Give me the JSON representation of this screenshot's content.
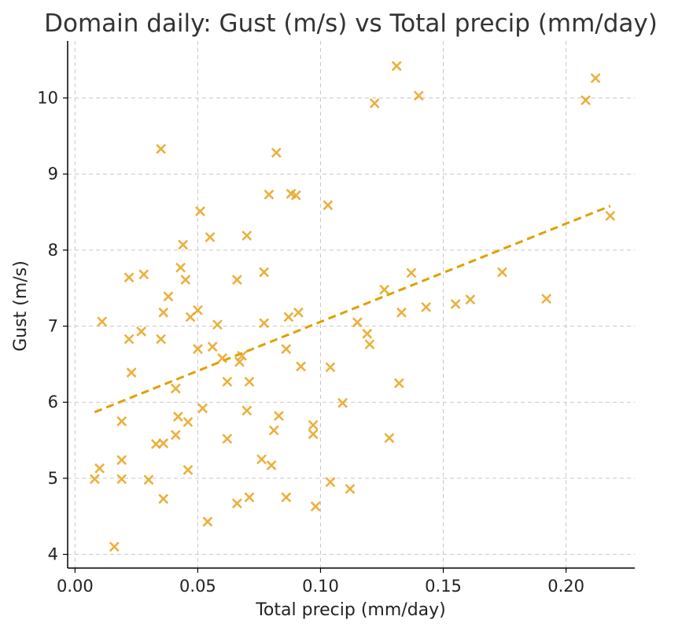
{
  "chart_data": {
    "type": "scatter",
    "title": "Domain daily: Gust (m/s) vs Total precip (mm/day)",
    "xlabel": "Total precip (mm/day)",
    "ylabel": "Gust (m/s)",
    "xlim": [
      -0.003,
      0.228
    ],
    "ylim": [
      3.82,
      10.75
    ],
    "xticks": [
      0.0,
      0.05,
      0.1,
      0.15,
      0.2
    ],
    "xtick_labels": [
      "0.00",
      "0.05",
      "0.10",
      "0.15",
      "0.20"
    ],
    "yticks": [
      4,
      5,
      6,
      7,
      8,
      9,
      10
    ],
    "ytick_labels": [
      "4",
      "5",
      "6",
      "7",
      "8",
      "9",
      "10"
    ],
    "grid": true,
    "marker": "x",
    "color": "#E8A31C",
    "trend_color": "#E0A000",
    "trendline": {
      "x": [
        0.008,
        0.218
      ],
      "y": [
        5.87,
        8.58
      ]
    },
    "points": [
      {
        "x": 0.008,
        "y": 4.99
      },
      {
        "x": 0.01,
        "y": 5.13
      },
      {
        "x": 0.011,
        "y": 7.06
      },
      {
        "x": 0.016,
        "y": 4.1
      },
      {
        "x": 0.019,
        "y": 4.99
      },
      {
        "x": 0.019,
        "y": 5.75
      },
      {
        "x": 0.019,
        "y": 5.24
      },
      {
        "x": 0.022,
        "y": 7.64
      },
      {
        "x": 0.022,
        "y": 6.83
      },
      {
        "x": 0.023,
        "y": 6.39
      },
      {
        "x": 0.027,
        "y": 6.93
      },
      {
        "x": 0.028,
        "y": 7.68
      },
      {
        "x": 0.03,
        "y": 4.98
      },
      {
        "x": 0.033,
        "y": 5.45
      },
      {
        "x": 0.035,
        "y": 6.83
      },
      {
        "x": 0.035,
        "y": 9.33
      },
      {
        "x": 0.036,
        "y": 5.46
      },
      {
        "x": 0.036,
        "y": 4.73
      },
      {
        "x": 0.036,
        "y": 7.18
      },
      {
        "x": 0.038,
        "y": 7.39
      },
      {
        "x": 0.041,
        "y": 5.57
      },
      {
        "x": 0.041,
        "y": 6.18
      },
      {
        "x": 0.042,
        "y": 5.81
      },
      {
        "x": 0.043,
        "y": 7.77
      },
      {
        "x": 0.044,
        "y": 8.07
      },
      {
        "x": 0.045,
        "y": 7.61
      },
      {
        "x": 0.046,
        "y": 5.74
      },
      {
        "x": 0.046,
        "y": 5.11
      },
      {
        "x": 0.047,
        "y": 7.12
      },
      {
        "x": 0.05,
        "y": 6.7
      },
      {
        "x": 0.05,
        "y": 7.21
      },
      {
        "x": 0.051,
        "y": 8.51
      },
      {
        "x": 0.052,
        "y": 5.92
      },
      {
        "x": 0.054,
        "y": 4.43
      },
      {
        "x": 0.055,
        "y": 8.17
      },
      {
        "x": 0.056,
        "y": 6.73
      },
      {
        "x": 0.058,
        "y": 7.02
      },
      {
        "x": 0.06,
        "y": 6.58
      },
      {
        "x": 0.062,
        "y": 6.27
      },
      {
        "x": 0.062,
        "y": 5.52
      },
      {
        "x": 0.066,
        "y": 4.67
      },
      {
        "x": 0.066,
        "y": 7.61
      },
      {
        "x": 0.067,
        "y": 6.53
      },
      {
        "x": 0.068,
        "y": 6.61
      },
      {
        "x": 0.07,
        "y": 5.89
      },
      {
        "x": 0.07,
        "y": 8.19
      },
      {
        "x": 0.071,
        "y": 6.27
      },
      {
        "x": 0.071,
        "y": 4.75
      },
      {
        "x": 0.076,
        "y": 5.25
      },
      {
        "x": 0.077,
        "y": 7.04
      },
      {
        "x": 0.077,
        "y": 7.71
      },
      {
        "x": 0.079,
        "y": 8.73
      },
      {
        "x": 0.08,
        "y": 5.17
      },
      {
        "x": 0.081,
        "y": 5.63
      },
      {
        "x": 0.082,
        "y": 9.28
      },
      {
        "x": 0.083,
        "y": 5.82
      },
      {
        "x": 0.086,
        "y": 4.75
      },
      {
        "x": 0.086,
        "y": 6.7
      },
      {
        "x": 0.087,
        "y": 7.12
      },
      {
        "x": 0.088,
        "y": 8.74
      },
      {
        "x": 0.09,
        "y": 8.72
      },
      {
        "x": 0.091,
        "y": 7.18
      },
      {
        "x": 0.092,
        "y": 6.47
      },
      {
        "x": 0.097,
        "y": 5.58
      },
      {
        "x": 0.097,
        "y": 5.7
      },
      {
        "x": 0.098,
        "y": 4.63
      },
      {
        "x": 0.103,
        "y": 8.59
      },
      {
        "x": 0.104,
        "y": 6.46
      },
      {
        "x": 0.104,
        "y": 4.95
      },
      {
        "x": 0.109,
        "y": 5.99
      },
      {
        "x": 0.112,
        "y": 4.86
      },
      {
        "x": 0.115,
        "y": 7.05
      },
      {
        "x": 0.119,
        "y": 6.9
      },
      {
        "x": 0.12,
        "y": 6.76
      },
      {
        "x": 0.122,
        "y": 9.93
      },
      {
        "x": 0.126,
        "y": 7.48
      },
      {
        "x": 0.128,
        "y": 5.53
      },
      {
        "x": 0.131,
        "y": 10.42
      },
      {
        "x": 0.132,
        "y": 6.25
      },
      {
        "x": 0.133,
        "y": 7.18
      },
      {
        "x": 0.137,
        "y": 7.7
      },
      {
        "x": 0.14,
        "y": 10.03
      },
      {
        "x": 0.143,
        "y": 7.25
      },
      {
        "x": 0.155,
        "y": 7.29
      },
      {
        "x": 0.161,
        "y": 7.35
      },
      {
        "x": 0.174,
        "y": 7.71
      },
      {
        "x": 0.192,
        "y": 7.36
      },
      {
        "x": 0.208,
        "y": 9.97
      },
      {
        "x": 0.212,
        "y": 10.26
      },
      {
        "x": 0.218,
        "y": 8.45
      }
    ]
  }
}
